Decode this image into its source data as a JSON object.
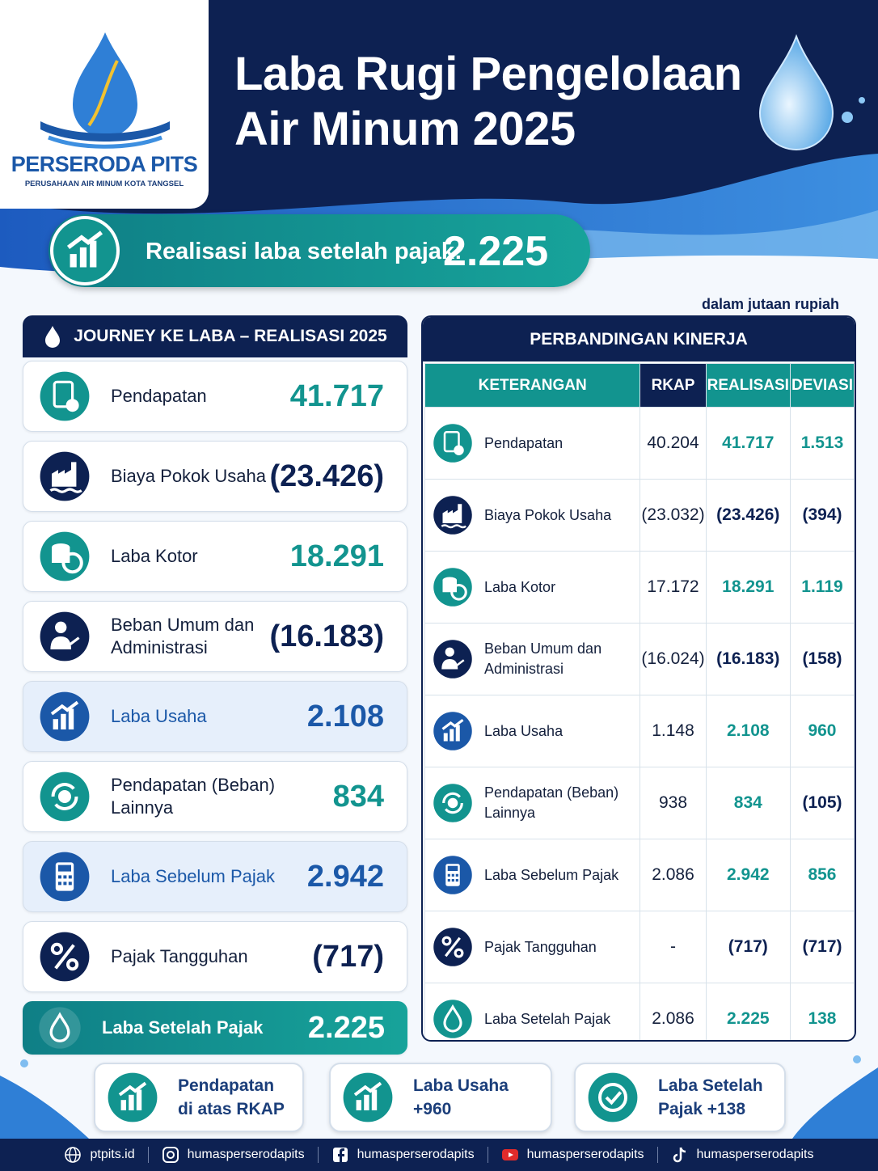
{
  "logo": {
    "name": "PERSERODA PITS",
    "tagline": "PERUSAHAAN AIR MINUM KOTA TANGSEL"
  },
  "header": {
    "title": [
      "Laba Rugi Pengelolaan",
      "Air Minum 2025"
    ]
  },
  "highlight": {
    "label": "Realisasi laba setelah pajak:",
    "value": "2.225"
  },
  "unit_note": "dalam jutaan rupiah",
  "journey": {
    "title": "JOURNEY KE LABA – REALISASI 2025",
    "items": [
      {
        "label": "Pendapatan",
        "value": "41.717"
      },
      {
        "label": "Biaya Pokok Usaha",
        "value": "(23.426)"
      },
      {
        "label": "Laba Kotor",
        "value": "18.291"
      },
      {
        "label": "Beban Umum dan Administrasi",
        "value": "(16.183)"
      },
      {
        "label": "Laba Usaha",
        "value": "2.108"
      },
      {
        "label": "Pendapatan (Beban) Lainnya",
        "value": "834"
      },
      {
        "label": "Laba Sebelum Pajak",
        "value": "2.942"
      },
      {
        "label": "Pajak Tangguhan",
        "value": "(717)"
      },
      {
        "label": "Laba Setelah Pajak",
        "value": "2.225"
      }
    ]
  },
  "comparison": {
    "title": "PERBANDINGAN KINERJA",
    "columns": [
      "KETERANGAN",
      "RKAP",
      "REALISASI",
      "DEVIASI"
    ],
    "rows": [
      [
        "Pendapatan",
        "40.204",
        "41.717",
        "1.513"
      ],
      [
        "Biaya Pokok Usaha",
        "(23.032)",
        "(23.426)",
        "(394)"
      ],
      [
        "Laba Kotor",
        "17.172",
        "18.291",
        "1.119"
      ],
      [
        "Beban Umum dan Administrasi",
        "(16.024)",
        "(16.183)",
        "(158)"
      ],
      [
        "Laba Usaha",
        "1.148",
        "2.108",
        "960"
      ],
      [
        "Pendapatan (Beban) Lainnya",
        "938",
        "834",
        "(105)"
      ],
      [
        "Laba Sebelum Pajak",
        "2.086",
        "2.942",
        "856"
      ],
      [
        "Pajak Tangguhan",
        "-",
        "(717)",
        "(717)"
      ],
      [
        "Laba Setelah Pajak",
        "2.086",
        "2.225",
        "138"
      ]
    ]
  },
  "summary": [
    {
      "line1": "Pendapatan",
      "line2": "di atas RKAP"
    },
    {
      "line1": "Laba Usaha",
      "line2": "+960"
    },
    {
      "line1": "Laba Setelah",
      "line2": "Pajak +138"
    }
  ],
  "footer": [
    "ptpits.id",
    "humasperserodapits",
    "humasperserodapits",
    "humasperserodapits",
    "humasperserodapits"
  ]
}
